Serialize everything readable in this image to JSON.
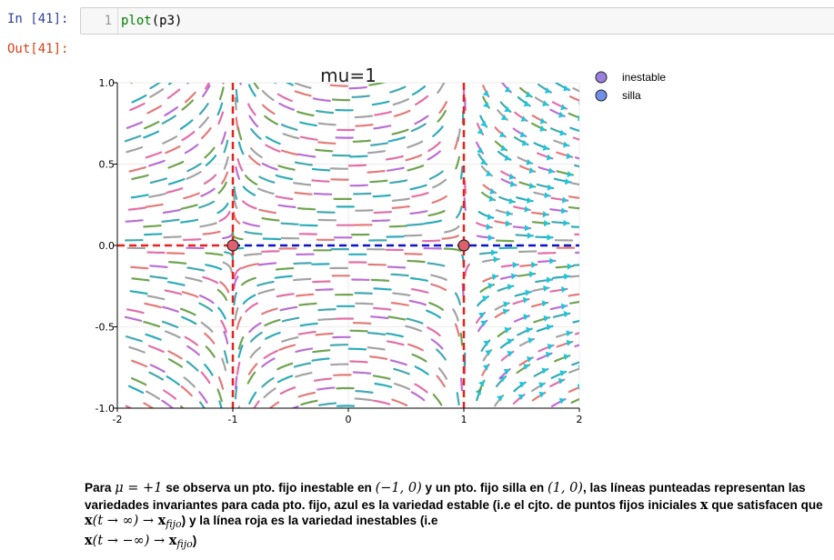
{
  "cell": {
    "in_prompt": "In [41]:",
    "out_prompt": "Out[41]:",
    "line_number": "1",
    "code_fn": "plot",
    "code_rest": "(p3)"
  },
  "chart_data": {
    "type": "streamplot",
    "title": "mu=1",
    "xlim": [
      -2,
      2
    ],
    "ylim": [
      -1,
      1
    ],
    "xticks": [
      "-2",
      "-1",
      "0",
      "1",
      "2"
    ],
    "yticks": [
      "1.0",
      "0.5",
      "0.0",
      "-0.5",
      "-1.0"
    ],
    "xtick_values": [
      -2,
      -1,
      0,
      1,
      2
    ],
    "ytick_values": [
      1.0,
      0.5,
      0.0,
      -0.5,
      -1.0
    ],
    "grid": true,
    "legend_position": "top-right outside",
    "legend": [
      {
        "name": "inestable",
        "color": "#9b7fe0"
      },
      {
        "name": "silla",
        "color": "#6f8fe8"
      }
    ],
    "fixed_points": [
      {
        "x": -1,
        "y": 0,
        "kind": "inestable",
        "color": "#e0606e"
      },
      {
        "x": 1,
        "y": 0,
        "kind": "silla",
        "color": "#e0606e"
      }
    ],
    "manifolds": [
      {
        "orientation": "vertical",
        "at": -1,
        "from": -1,
        "to": 1,
        "color": "#e8231e",
        "style": "dashed"
      },
      {
        "orientation": "horizontal",
        "at": 0,
        "from": -2,
        "to": -1,
        "color": "#e8231e",
        "style": "dashed"
      },
      {
        "orientation": "horizontal",
        "at": 0,
        "from": -1,
        "to": 2,
        "color": "#0a14c8",
        "style": "dashed"
      },
      {
        "orientation": "vertical",
        "at": 1,
        "from": -1,
        "to": 1,
        "color": "#e8231e",
        "style": "dashed"
      }
    ],
    "stream_colors": [
      "#e05fa0",
      "#15a3b3",
      "#5f9a3d",
      "#e06d6a",
      "#999999",
      "#2fa0a8",
      "#b25fd0"
    ],
    "arrow_color": "#22c4d8"
  },
  "markdown": {
    "t1": "Para ",
    "m1": "μ = +1",
    "t2": " se observa un pto. fijo inestable en ",
    "m2": "(−1, 0)",
    "t3": " y un pto. fijo silla en ",
    "m3": "(1, 0)",
    "t4": ", las líneas punteadas representan las variedades invariantes para cada pto. fijo, azul es la variedad estable (i.e el cjto. de puntos fijos iniciales ",
    "m4": "x",
    "t5": " que satisfacen que ",
    "m5a": "x",
    "m5b": "(t → ∞) → ",
    "m5c": "x",
    "m5d": "fijo",
    "t6": ") y la línea roja es la variedad inestables (i.e ",
    "m6a": "x",
    "m6b": "(t → −∞) → ",
    "m6c": "x",
    "m6d": "fijo",
    "t7": ")"
  }
}
